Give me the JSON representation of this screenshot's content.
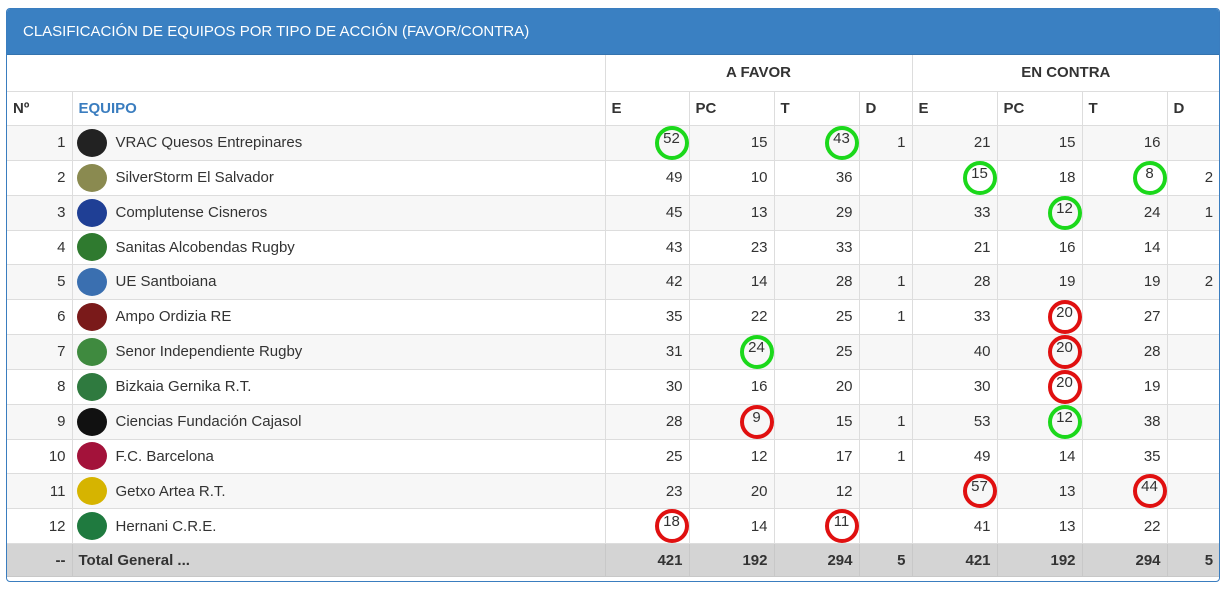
{
  "title": "CLASIFICACIÓN DE EQUIPOS POR TIPO DE ACCIÓN (FAVOR/CONTRA)",
  "groups": {
    "favor": "A FAVOR",
    "contra": "EN CONTRA"
  },
  "headers": {
    "rank": "Nº",
    "team": "EQUIPO",
    "e": "E",
    "pc": "PC",
    "t": "T",
    "d": "D"
  },
  "colors": {
    "good": "#1bd81b",
    "bad": "#e01010",
    "header_bg": "#3a80c2"
  },
  "rows": [
    {
      "rank": "1",
      "team": "VRAC Quesos Entrepinares",
      "logo": "vrac-logo-icon",
      "logo_color": "#222222",
      "f": [
        "52",
        "15",
        "43",
        "1"
      ],
      "c": [
        "21",
        "15",
        "16",
        ""
      ],
      "fm": [
        "good",
        "",
        "good",
        ""
      ],
      "cm": [
        "",
        "",
        "",
        ""
      ]
    },
    {
      "rank": "2",
      "team": "SilverStorm El Salvador",
      "logo": "el-salvador-logo-icon",
      "logo_color": "#8a8a50",
      "f": [
        "49",
        "10",
        "36",
        ""
      ],
      "c": [
        "15",
        "18",
        "8",
        "2"
      ],
      "fm": [
        "",
        "",
        "",
        ""
      ],
      "cm": [
        "good",
        "",
        "good",
        ""
      ]
    },
    {
      "rank": "3",
      "team": "Complutense Cisneros",
      "logo": "cisneros-logo-icon",
      "logo_color": "#1f3f95",
      "f": [
        "45",
        "13",
        "29",
        ""
      ],
      "c": [
        "33",
        "12",
        "24",
        "1"
      ],
      "fm": [
        "",
        "",
        "",
        ""
      ],
      "cm": [
        "",
        "good",
        "",
        ""
      ]
    },
    {
      "rank": "4",
      "team": "Sanitas Alcobendas Rugby",
      "logo": "alcobendas-logo-icon",
      "logo_color": "#2f7a2f",
      "f": [
        "43",
        "23",
        "33",
        ""
      ],
      "c": [
        "21",
        "16",
        "14",
        ""
      ],
      "fm": [
        "",
        "",
        "",
        ""
      ],
      "cm": [
        "",
        "",
        "",
        ""
      ]
    },
    {
      "rank": "5",
      "team": "UE Santboiana",
      "logo": "santboiana-logo-icon",
      "logo_color": "#3a6fb0",
      "f": [
        "42",
        "14",
        "28",
        "1"
      ],
      "c": [
        "28",
        "19",
        "19",
        "2"
      ],
      "fm": [
        "",
        "",
        "",
        ""
      ],
      "cm": [
        "",
        "",
        "",
        ""
      ]
    },
    {
      "rank": "6",
      "team": "Ampo Ordizia RE",
      "logo": "ordizia-logo-icon",
      "logo_color": "#7a1a1a",
      "f": [
        "35",
        "22",
        "25",
        "1"
      ],
      "c": [
        "33",
        "20",
        "27",
        ""
      ],
      "fm": [
        "",
        "",
        "",
        ""
      ],
      "cm": [
        "",
        "bad",
        "",
        ""
      ]
    },
    {
      "rank": "7",
      "team": "Senor Independiente Rugby",
      "logo": "independiente-logo-icon",
      "logo_color": "#3f8a3f",
      "f": [
        "31",
        "24",
        "25",
        ""
      ],
      "c": [
        "40",
        "20",
        "28",
        ""
      ],
      "fm": [
        "",
        "good",
        "",
        ""
      ],
      "cm": [
        "",
        "bad",
        "",
        ""
      ]
    },
    {
      "rank": "8",
      "team": "Bizkaia Gernika R.T.",
      "logo": "gernika-logo-icon",
      "logo_color": "#2f7a3f",
      "f": [
        "30",
        "16",
        "20",
        ""
      ],
      "c": [
        "30",
        "20",
        "19",
        ""
      ],
      "fm": [
        "",
        "",
        "",
        ""
      ],
      "cm": [
        "",
        "bad",
        "",
        ""
      ]
    },
    {
      "rank": "9",
      "team": "Ciencias Fundación Cajasol",
      "logo": "ciencias-logo-icon",
      "logo_color": "#111111",
      "f": [
        "28",
        "9",
        "15",
        "1"
      ],
      "c": [
        "53",
        "12",
        "38",
        ""
      ],
      "fm": [
        "",
        "bad",
        "",
        ""
      ],
      "cm": [
        "",
        "good",
        "",
        ""
      ]
    },
    {
      "rank": "10",
      "team": "F.C. Barcelona",
      "logo": "barcelona-logo-icon",
      "logo_color": "#a3123a",
      "f": [
        "25",
        "12",
        "17",
        "1"
      ],
      "c": [
        "49",
        "14",
        "35",
        ""
      ],
      "fm": [
        "",
        "",
        "",
        ""
      ],
      "cm": [
        "",
        "",
        "",
        ""
      ]
    },
    {
      "rank": "11",
      "team": "Getxo Artea R.T.",
      "logo": "getxo-logo-icon",
      "logo_color": "#d6b400",
      "f": [
        "23",
        "20",
        "12",
        ""
      ],
      "c": [
        "57",
        "13",
        "44",
        ""
      ],
      "fm": [
        "",
        "",
        "",
        ""
      ],
      "cm": [
        "bad",
        "",
        "bad",
        ""
      ]
    },
    {
      "rank": "12",
      "team": "Hernani C.R.E.",
      "logo": "hernani-logo-icon",
      "logo_color": "#1f7a3f",
      "f": [
        "18",
        "14",
        "11",
        ""
      ],
      "c": [
        "41",
        "13",
        "22",
        ""
      ],
      "fm": [
        "bad",
        "",
        "bad",
        ""
      ],
      "cm": [
        "",
        "",
        "",
        ""
      ]
    }
  ],
  "total": {
    "rank": "--",
    "label": "Total General ...",
    "f": [
      "421",
      "192",
      "294",
      "5"
    ],
    "c": [
      "421",
      "192",
      "294",
      "5"
    ]
  }
}
